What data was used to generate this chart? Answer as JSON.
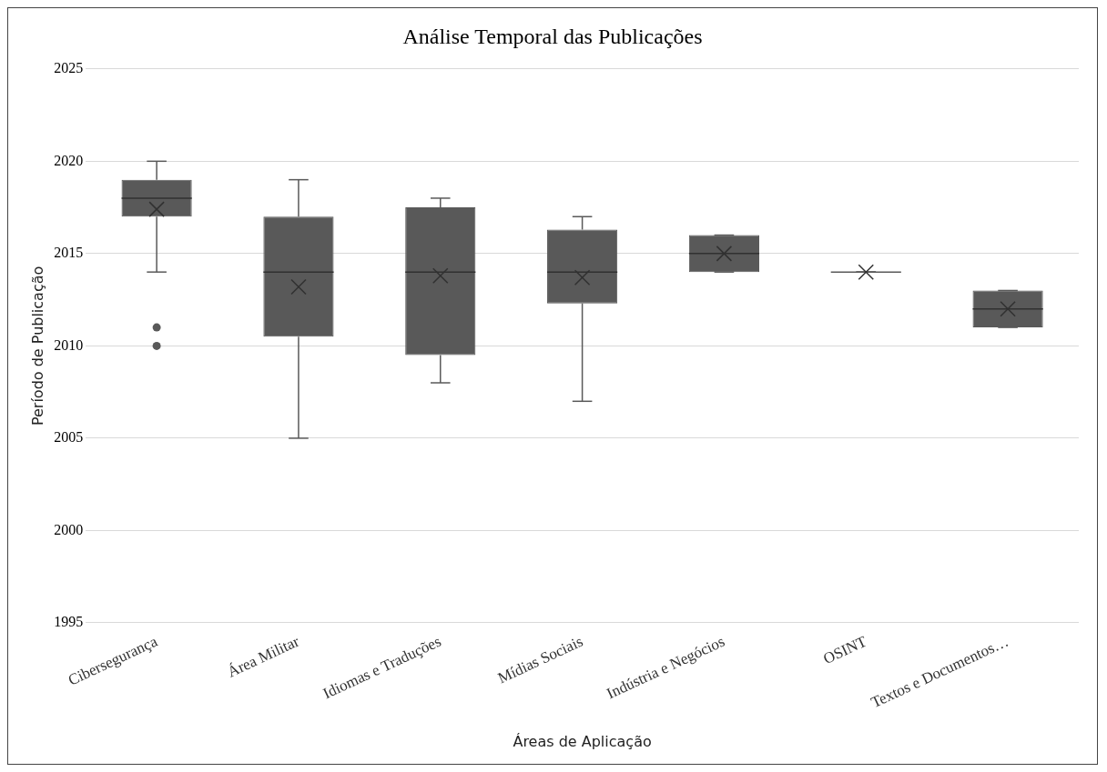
{
  "chart_data": {
    "type": "box",
    "title": "Análise Temporal das Publicações",
    "xlabel": "Áreas de Aplicação",
    "ylabel": "Período de Publicação",
    "categories": [
      "Cibersegurança",
      "Área Militar",
      "Idiomas e Traduções",
      "Mídias Sociais",
      "Indústria e Negócios",
      "OSINT",
      "Textos e Documentos…"
    ],
    "boxes": [
      {
        "low": 2014,
        "q1": 2017,
        "median": 2018,
        "q3": 2019,
        "high": 2020,
        "mean": 2017.4,
        "outliers": [
          2011,
          2010
        ]
      },
      {
        "low": 2005,
        "q1": 2010.5,
        "median": 2014,
        "q3": 2017,
        "high": 2019,
        "mean": 2013.2
      },
      {
        "low": 2008,
        "q1": 2009.5,
        "median": 2014,
        "q3": 2017.5,
        "high": 2018,
        "mean": 2013.8
      },
      {
        "low": 2007,
        "q1": 2012.3,
        "median": 2014,
        "q3": 2016.3,
        "high": 2017,
        "mean": 2013.7
      },
      {
        "low": 2014,
        "q1": 2014,
        "median": 2015,
        "q3": 2016,
        "high": 2016,
        "mean": 2015
      },
      {
        "low": 2014,
        "q1": 2014,
        "median": 2014,
        "q3": 2014,
        "high": 2014,
        "mean": 2014
      },
      {
        "low": 2011,
        "q1": 2011,
        "median": 2012,
        "q3": 2013,
        "high": 2013,
        "mean": 2012
      }
    ],
    "color": "#595959",
    "ylim": [
      1995,
      2025
    ],
    "yticks": [
      1995,
      2000,
      2005,
      2010,
      2015,
      2020,
      2025
    ],
    "grid": "y"
  }
}
